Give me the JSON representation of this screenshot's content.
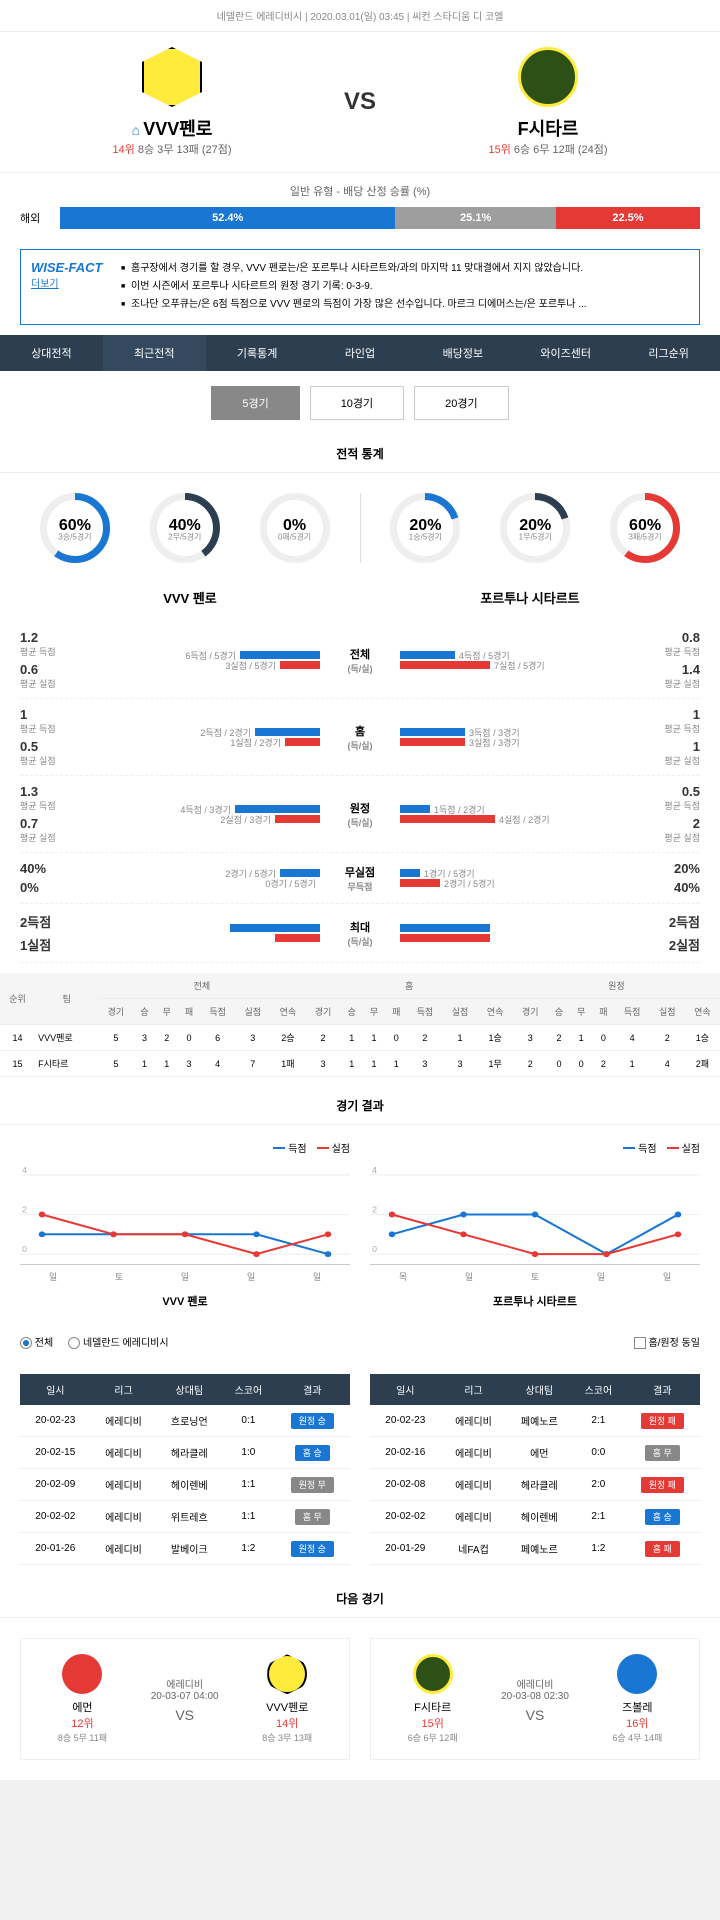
{
  "header": {
    "league": "네델란드 에레디비시",
    "datetime": "2020.03.01(일) 03:45",
    "venue": "씨컨 스타디움 디 코엘"
  },
  "match": {
    "home": {
      "name": "VVV펜로",
      "rank": "14위",
      "record": "8승 3무 13패 (27점)"
    },
    "away": {
      "name": "F시타르",
      "rank": "15위",
      "record": "6승 6무 12패 (24점)"
    },
    "vs": "VS"
  },
  "odds": {
    "title": "일반 유형 - 배당 산정 승률 (%)",
    "label": "해외",
    "home_pct": "52.4%",
    "draw_pct": "25.1%",
    "away_pct": "22.5%",
    "home_w": 52.4,
    "draw_w": 25.1,
    "away_w": 22.5
  },
  "wisefact": {
    "label": "WISE-FACT",
    "more": "더보기",
    "items": [
      "홈구장에서 경기를 할 경우, VVV 펜로는/은 포르투나 시타르트와/과의 마지막 11 맞대결에서 지지 않았습니다.",
      "이번 시즌에서 포르투나 시타르트의 원정 경기 기록: 0-3-9.",
      "조나단 오푸큐는/은 6점 득점으로 VVV 펜로의 득점이 가장 많은 선수입니다. 마르크 디에머스는/은 포르투나 ..."
    ]
  },
  "tabs": [
    "상대전적",
    "최근전적",
    "기록통계",
    "라인업",
    "배당정보",
    "와이즈센터",
    "리그순위"
  ],
  "subtabs": [
    "5경기",
    "10경기",
    "20경기"
  ],
  "section_stats": "전적 통계",
  "donuts": {
    "left": [
      {
        "pct": "60%",
        "lbl": "3승/5경기",
        "fill": 60,
        "color": "#1976d2"
      },
      {
        "pct": "40%",
        "lbl": "2무/5경기",
        "fill": 40,
        "color": "#2c3e50"
      },
      {
        "pct": "0%",
        "lbl": "0패/5경기",
        "fill": 0,
        "color": "#e53935"
      }
    ],
    "right": [
      {
        "pct": "20%",
        "lbl": "1승/5경기",
        "fill": 20,
        "color": "#1976d2"
      },
      {
        "pct": "20%",
        "lbl": "1무/5경기",
        "fill": 20,
        "color": "#2c3e50"
      },
      {
        "pct": "60%",
        "lbl": "3패/5경기",
        "fill": 60,
        "color": "#e53935"
      }
    ]
  },
  "team_names": {
    "left": "VVV 펜로",
    "right": "포르투나 시타르트"
  },
  "stat_rows": [
    {
      "lv1": "1.2",
      "ll1": "평균 득점",
      "lv2": "0.6",
      "ll2": "평균 실점",
      "lt1": "6득점 / 5경기",
      "lt2": "3실점 / 5경기",
      "lb1": 80,
      "lb2": 40,
      "c": "전체",
      "cs": "(득/실)",
      "rt1": "4득점 / 5경기",
      "rt2": "7실점 / 5경기",
      "rb1": 55,
      "rb2": 90,
      "rv1": "0.8",
      "rl1": "평균 득점",
      "rv2": "1.4",
      "rl2": "평균 실점"
    },
    {
      "lv1": "1",
      "ll1": "평균 득점",
      "lv2": "0.5",
      "ll2": "평균 실점",
      "lt1": "2득점 / 2경기",
      "lt2": "1실점 / 2경기",
      "lb1": 65,
      "lb2": 35,
      "c": "홈",
      "cs": "(득/실)",
      "rt1": "3득점 / 3경기",
      "rt2": "3실점 / 3경기",
      "rb1": 65,
      "rb2": 65,
      "rv1": "1",
      "rl1": "평균 득점",
      "rv2": "1",
      "rl2": "평균 실점"
    },
    {
      "lv1": "1.3",
      "ll1": "평균 득점",
      "lv2": "0.7",
      "ll2": "평균 실점",
      "lt1": "4득점 / 3경기",
      "lt2": "2실점 / 3경기",
      "lb1": 85,
      "lb2": 45,
      "c": "원정",
      "cs": "(득/실)",
      "rt1": "1득점 / 2경기",
      "rt2": "4실점 / 2경기",
      "rb1": 30,
      "rb2": 95,
      "rv1": "0.5",
      "rl1": "평균 득점",
      "rv2": "2",
      "rl2": "평균 실점"
    },
    {
      "lv1": "40%",
      "ll1": "",
      "lv2": "0%",
      "ll2": "",
      "lt1": "2경기 / 5경기",
      "lt2": "0경기 / 5경기",
      "lb1": 40,
      "lb2": 0,
      "c": "무실점",
      "cs": "무득점",
      "rt1": "1경기 / 5경기",
      "rt2": "2경기 / 5경기",
      "rb1": 20,
      "rb2": 40,
      "rv1": "20%",
      "rl1": "",
      "rv2": "40%",
      "rl2": ""
    },
    {
      "lv1": "2득점",
      "ll1": "",
      "lv2": "1실점",
      "ll2": "",
      "lt1": "",
      "lt2": "",
      "lb1": 90,
      "lb2": 45,
      "c": "최대",
      "cs": "(득/실)",
      "rt1": "",
      "rt2": "",
      "rb1": 90,
      "rb2": 90,
      "rv1": "2득점",
      "rl1": "",
      "rv2": "2실점",
      "rl2": ""
    }
  ],
  "standings": {
    "headers_main": [
      "순위",
      "팀",
      "전체",
      "홈",
      "원정"
    ],
    "headers_sub": [
      "경기",
      "승",
      "무",
      "패",
      "득점",
      "실점",
      "연속",
      "경기",
      "승",
      "무",
      "패",
      "득점",
      "실점",
      "연속",
      "경기",
      "승",
      "무",
      "패",
      "득점",
      "실점",
      "연속"
    ],
    "rows": [
      {
        "rank": "14",
        "team": "VVV펜로",
        "d": [
          "5",
          "3",
          "2",
          "0",
          "6",
          "3",
          "2승",
          "2",
          "1",
          "1",
          "0",
          "2",
          "1",
          "1승",
          "3",
          "2",
          "1",
          "0",
          "4",
          "2",
          "1승"
        ]
      },
      {
        "rank": "15",
        "team": "F시타르",
        "d": [
          "5",
          "1",
          "1",
          "3",
          "4",
          "7",
          "1패",
          "3",
          "1",
          "1",
          "1",
          "3",
          "3",
          "1무",
          "2",
          "0",
          "0",
          "2",
          "1",
          "4",
          "2패"
        ]
      }
    ]
  },
  "section_results": "경기 결과",
  "legend": {
    "goal": "득점",
    "concede": "실점"
  },
  "chart_labels": [
    "일",
    "토",
    "일",
    "일",
    "일"
  ],
  "chart_labels2": [
    "목",
    "일",
    "토",
    "일",
    "일"
  ],
  "chartL": {
    "goals": [
      1,
      1,
      1,
      1,
      0
    ],
    "concedes": [
      2,
      1,
      1,
      0,
      1
    ],
    "ymax": 4
  },
  "chartR": {
    "goals": [
      1,
      2,
      2,
      0,
      2
    ],
    "concedes": [
      2,
      1,
      0,
      0,
      1
    ],
    "ymax": 4
  },
  "filter": {
    "all": "전체",
    "league": "네델란드 에레디비시",
    "home_away": "홈/원정 동일"
  },
  "results_headers": [
    "일시",
    "리그",
    "상대팀",
    "스코어",
    "결과"
  ],
  "resultsL": [
    {
      "d": "20-02-23",
      "l": "에레디비",
      "o": "흐로닝언",
      "s": "0:1",
      "r": "원정 승",
      "c": "blue"
    },
    {
      "d": "20-02-15",
      "l": "에레디비",
      "o": "헤라클레",
      "s": "1:0",
      "r": "홈 승",
      "c": "blue"
    },
    {
      "d": "20-02-09",
      "l": "에레디비",
      "o": "헤이렌베",
      "s": "1:1",
      "r": "원정 무",
      "c": "gray"
    },
    {
      "d": "20-02-02",
      "l": "에레디비",
      "o": "위트레흐",
      "s": "1:1",
      "r": "홈 무",
      "c": "gray"
    },
    {
      "d": "20-01-26",
      "l": "에레디비",
      "o": "발베이크",
      "s": "1:2",
      "r": "원정 승",
      "c": "blue"
    }
  ],
  "resultsR": [
    {
      "d": "20-02-23",
      "l": "에레디비",
      "o": "페예노르",
      "s": "2:1",
      "r": "원정 패",
      "c": "red"
    },
    {
      "d": "20-02-16",
      "l": "에레디비",
      "o": "에먼",
      "s": "0:0",
      "r": "홈 무",
      "c": "gray"
    },
    {
      "d": "20-02-08",
      "l": "에레디비",
      "o": "헤라클레",
      "s": "2:0",
      "r": "원정 패",
      "c": "red"
    },
    {
      "d": "20-02-02",
      "l": "에레디비",
      "o": "헤이렌베",
      "s": "2:1",
      "r": "홈 승",
      "c": "blue"
    },
    {
      "d": "20-01-29",
      "l": "네FA컵",
      "o": "페예노르",
      "s": "1:2",
      "r": "홈 패",
      "c": "red"
    }
  ],
  "section_next": "다음 경기",
  "nextL": {
    "h": "에먼",
    "hr": "12위",
    "hrec": "8승 5무 11패",
    "date": "에레디비",
    "dt": "20-03-07 04:00",
    "a": "VVV펜로",
    "ar": "14위",
    "arec": "8승 3무 13패"
  },
  "nextR": {
    "h": "F시타르",
    "hr": "15위",
    "hrec": "6승 6무 12패",
    "date": "에레디비",
    "dt": "20-03-08 02:30",
    "a": "즈볼레",
    "ar": "16위",
    "arec": "6승 4무 14패"
  }
}
